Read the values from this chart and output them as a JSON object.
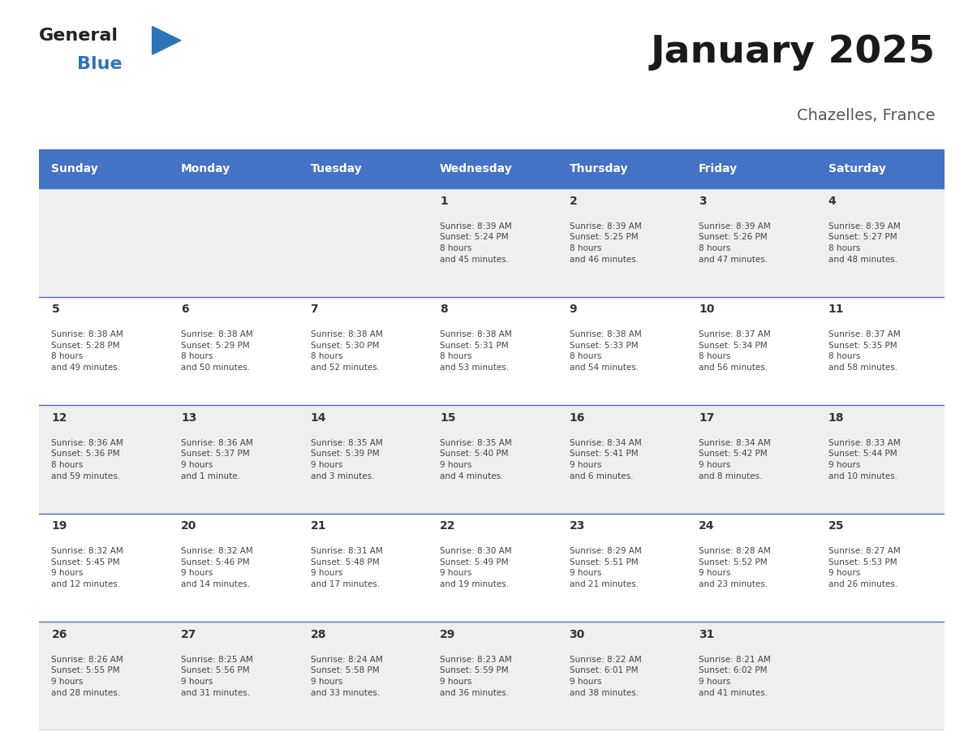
{
  "title": "January 2025",
  "subtitle": "Chazelles, France",
  "header_bg": "#4472C4",
  "header_text_color": "#FFFFFF",
  "days_of_week": [
    "Sunday",
    "Monday",
    "Tuesday",
    "Wednesday",
    "Thursday",
    "Friday",
    "Saturday"
  ],
  "row_bg_odd": "#EFEFEF",
  "row_bg_even": "#FFFFFF",
  "day_number_color": "#333333",
  "info_color": "#444444",
  "border_color": "#4472C4",
  "row_border_color": "#4472C4",
  "logo_general_color": "#222222",
  "logo_blue_color": "#2E75B6",
  "cells": [
    {
      "day": null
    },
    {
      "day": null
    },
    {
      "day": null
    },
    {
      "day": 1,
      "sunrise": "8:39 AM",
      "sunset": "5:24 PM",
      "daylight": "8 hours and 45 minutes."
    },
    {
      "day": 2,
      "sunrise": "8:39 AM",
      "sunset": "5:25 PM",
      "daylight": "8 hours and 46 minutes."
    },
    {
      "day": 3,
      "sunrise": "8:39 AM",
      "sunset": "5:26 PM",
      "daylight": "8 hours and 47 minutes."
    },
    {
      "day": 4,
      "sunrise": "8:39 AM",
      "sunset": "5:27 PM",
      "daylight": "8 hours and 48 minutes."
    },
    {
      "day": 5,
      "sunrise": "8:38 AM",
      "sunset": "5:28 PM",
      "daylight": "8 hours and 49 minutes."
    },
    {
      "day": 6,
      "sunrise": "8:38 AM",
      "sunset": "5:29 PM",
      "daylight": "8 hours and 50 minutes."
    },
    {
      "day": 7,
      "sunrise": "8:38 AM",
      "sunset": "5:30 PM",
      "daylight": "8 hours and 52 minutes."
    },
    {
      "day": 8,
      "sunrise": "8:38 AM",
      "sunset": "5:31 PM",
      "daylight": "8 hours and 53 minutes."
    },
    {
      "day": 9,
      "sunrise": "8:38 AM",
      "sunset": "5:33 PM",
      "daylight": "8 hours and 54 minutes."
    },
    {
      "day": 10,
      "sunrise": "8:37 AM",
      "sunset": "5:34 PM",
      "daylight": "8 hours and 56 minutes."
    },
    {
      "day": 11,
      "sunrise": "8:37 AM",
      "sunset": "5:35 PM",
      "daylight": "8 hours and 58 minutes."
    },
    {
      "day": 12,
      "sunrise": "8:36 AM",
      "sunset": "5:36 PM",
      "daylight": "8 hours and 59 minutes."
    },
    {
      "day": 13,
      "sunrise": "8:36 AM",
      "sunset": "5:37 PM",
      "daylight": "9 hours and 1 minute."
    },
    {
      "day": 14,
      "sunrise": "8:35 AM",
      "sunset": "5:39 PM",
      "daylight": "9 hours and 3 minutes."
    },
    {
      "day": 15,
      "sunrise": "8:35 AM",
      "sunset": "5:40 PM",
      "daylight": "9 hours and 4 minutes."
    },
    {
      "day": 16,
      "sunrise": "8:34 AM",
      "sunset": "5:41 PM",
      "daylight": "9 hours and 6 minutes."
    },
    {
      "day": 17,
      "sunrise": "8:34 AM",
      "sunset": "5:42 PM",
      "daylight": "9 hours and 8 minutes."
    },
    {
      "day": 18,
      "sunrise": "8:33 AM",
      "sunset": "5:44 PM",
      "daylight": "9 hours and 10 minutes."
    },
    {
      "day": 19,
      "sunrise": "8:32 AM",
      "sunset": "5:45 PM",
      "daylight": "9 hours and 12 minutes."
    },
    {
      "day": 20,
      "sunrise": "8:32 AM",
      "sunset": "5:46 PM",
      "daylight": "9 hours and 14 minutes."
    },
    {
      "day": 21,
      "sunrise": "8:31 AM",
      "sunset": "5:48 PM",
      "daylight": "9 hours and 17 minutes."
    },
    {
      "day": 22,
      "sunrise": "8:30 AM",
      "sunset": "5:49 PM",
      "daylight": "9 hours and 19 minutes."
    },
    {
      "day": 23,
      "sunrise": "8:29 AM",
      "sunset": "5:51 PM",
      "daylight": "9 hours and 21 minutes."
    },
    {
      "day": 24,
      "sunrise": "8:28 AM",
      "sunset": "5:52 PM",
      "daylight": "9 hours and 23 minutes."
    },
    {
      "day": 25,
      "sunrise": "8:27 AM",
      "sunset": "5:53 PM",
      "daylight": "9 hours and 26 minutes."
    },
    {
      "day": 26,
      "sunrise": "8:26 AM",
      "sunset": "5:55 PM",
      "daylight": "9 hours and 28 minutes."
    },
    {
      "day": 27,
      "sunrise": "8:25 AM",
      "sunset": "5:56 PM",
      "daylight": "9 hours and 31 minutes."
    },
    {
      "day": 28,
      "sunrise": "8:24 AM",
      "sunset": "5:58 PM",
      "daylight": "9 hours and 33 minutes."
    },
    {
      "day": 29,
      "sunrise": "8:23 AM",
      "sunset": "5:59 PM",
      "daylight": "9 hours and 36 minutes."
    },
    {
      "day": 30,
      "sunrise": "8:22 AM",
      "sunset": "6:01 PM",
      "daylight": "9 hours and 38 minutes."
    },
    {
      "day": 31,
      "sunrise": "8:21 AM",
      "sunset": "6:02 PM",
      "daylight": "9 hours and 41 minutes."
    },
    {
      "day": null
    }
  ]
}
